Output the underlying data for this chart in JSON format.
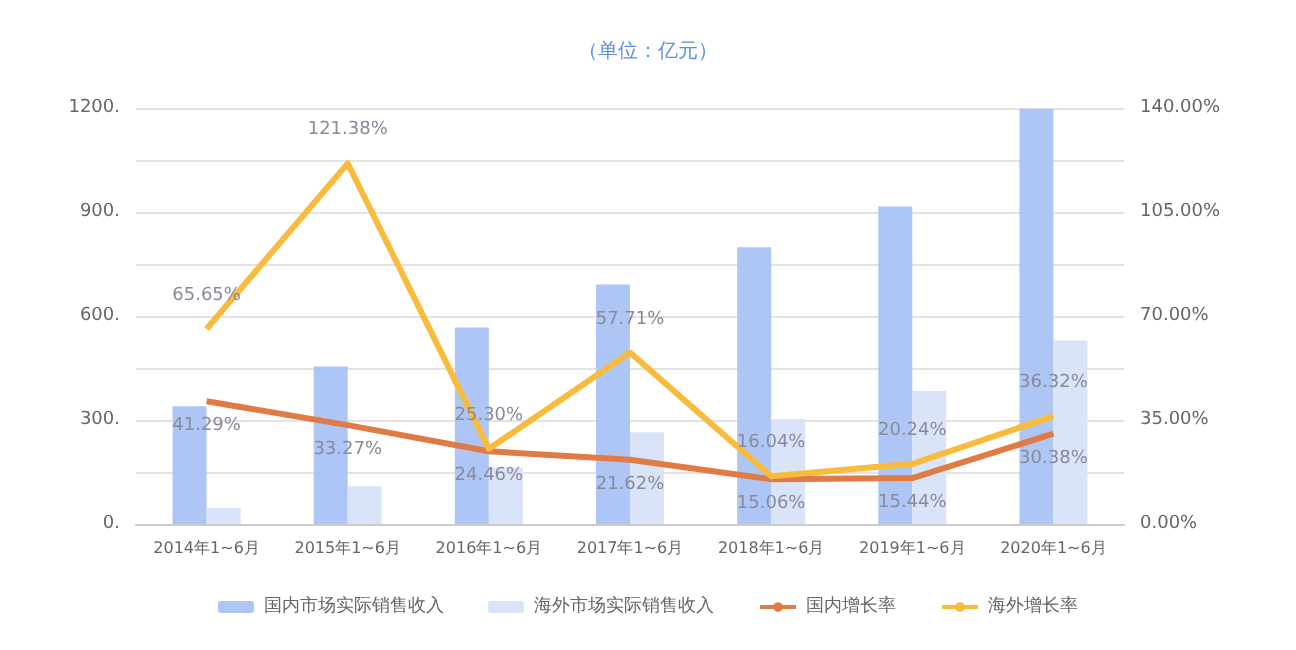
{
  "chart_data": {
    "type": "bar",
    "title": "（单位：亿元）",
    "categories": [
      "2014年1~6月",
      "2015年1~6月",
      "2016年1~6月",
      "2017年1~6月",
      "2018年1~6月",
      "2019年1~6月",
      "2020年1~6月"
    ],
    "series": [
      {
        "name": "国内市场实际销售收入",
        "color": "#adc6f5",
        "values": [
          340,
          454,
          567,
          691,
          798,
          916,
          1198
        ]
      },
      {
        "name": "海外市场实际销售收入",
        "color": "#dae4f8",
        "values": [
          46,
          109,
          163,
          265,
          303,
          384,
          529
        ]
      },
      {
        "name": "国内增长率",
        "type": "line",
        "axis": "y2",
        "color": "#e07b45",
        "values": [
          41.29,
          33.27,
          24.46,
          21.62,
          15.06,
          15.44,
          30.38
        ],
        "value_labels": [
          "41.29%",
          "33.27%",
          "24.46%",
          "21.62%",
          "15.06%",
          "15.44%",
          "30.38%"
        ]
      },
      {
        "name": "海外增长率",
        "type": "line",
        "axis": "y2",
        "color": "#f8bb3c",
        "values": [
          65.65,
          121.38,
          25.3,
          57.71,
          16.04,
          20.24,
          36.32
        ],
        "value_labels": [
          "65.65%",
          "121.38%",
          "25.30%",
          "57.71%",
          "16.04%",
          "20.24%",
          "36.32%"
        ]
      }
    ],
    "ylim": [
      0,
      1200
    ],
    "yticks": [
      {
        "value": 0,
        "label": "0."
      },
      {
        "value": 150,
        "label": null
      },
      {
        "value": 300,
        "label": "300."
      },
      {
        "value": 450,
        "label": null
      },
      {
        "value": 600,
        "label": "600."
      },
      {
        "value": 750,
        "label": null
      },
      {
        "value": 900,
        "label": "900."
      },
      {
        "value": 1050,
        "label": null
      },
      {
        "value": 1200,
        "label": "1200."
      }
    ],
    "y2lim": [
      0,
      140
    ],
    "y2ticks": [
      {
        "value": 0,
        "label": "0.00%"
      },
      {
        "value": 35,
        "label": "35.00%"
      },
      {
        "value": 70,
        "label": "70.00%"
      },
      {
        "value": 105,
        "label": "105.00%"
      },
      {
        "value": 140,
        "label": "140.00%"
      }
    ],
    "grid": "y",
    "legend": "bottom",
    "marker": "none",
    "line_style": "solid"
  }
}
